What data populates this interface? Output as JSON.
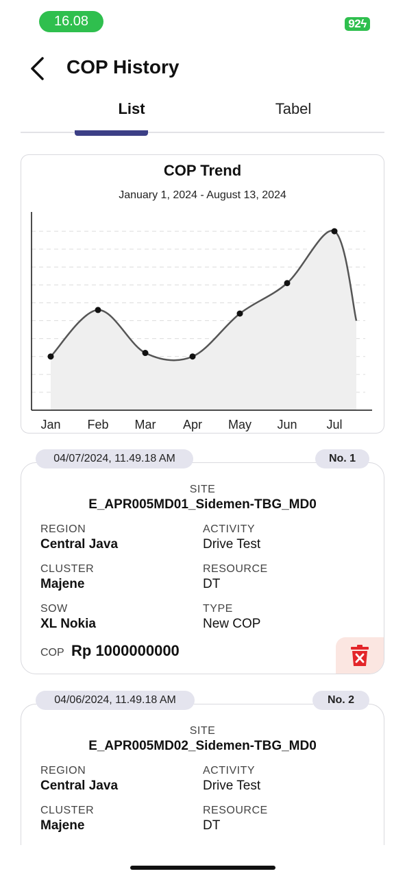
{
  "status_bar": {
    "time": "16.08",
    "battery": "92"
  },
  "header": {
    "title": "COP History"
  },
  "tabs": [
    {
      "label": "List",
      "active": true
    },
    {
      "label": "Tabel",
      "active": false
    }
  ],
  "chart_data": {
    "type": "line",
    "title": "COP Trend",
    "subtitle": "January 1, 2024 - August 13, 2024",
    "categories": [
      "Jan",
      "Feb",
      "Mar",
      "Apr",
      "May",
      "Jun",
      "Jul"
    ],
    "values": [
      3,
      5.6,
      3.2,
      3,
      5.4,
      7.1,
      10
    ],
    "ylim": [
      0,
      11
    ],
    "grid": true,
    "smooth": true,
    "fill": "#efefef",
    "line_color": "#555555"
  },
  "records": [
    {
      "date": "04/07/2024, 11.49.18 AM",
      "number": "No. 1",
      "site_label": "SITE",
      "site": "E_APR005MD01_Sidemen-TBG_MD0",
      "fields": [
        {
          "label": "REGION",
          "value": "Central Java",
          "bold": true
        },
        {
          "label": "ACTIVITY",
          "value": "Drive Test",
          "bold": false
        },
        {
          "label": "CLUSTER",
          "value": "Majene",
          "bold": true
        },
        {
          "label": "RESOURCE",
          "value": "DT",
          "bold": false
        },
        {
          "label": "SOW",
          "value": "XL Nokia",
          "bold": true
        },
        {
          "label": "TYPE",
          "value": "New COP",
          "bold": false
        }
      ],
      "cop_label": "COP",
      "cop_value": "Rp 1000000000"
    },
    {
      "date": "04/06/2024, 11.49.18 AM",
      "number": "No. 2",
      "site_label": "SITE",
      "site": "E_APR005MD02_Sidemen-TBG_MD0",
      "fields": [
        {
          "label": "REGION",
          "value": "Central Java",
          "bold": true
        },
        {
          "label": "ACTIVITY",
          "value": "Drive Test",
          "bold": false
        },
        {
          "label": "CLUSTER",
          "value": "Majene",
          "bold": true
        },
        {
          "label": "RESOURCE",
          "value": "DT",
          "bold": false
        }
      ]
    }
  ]
}
